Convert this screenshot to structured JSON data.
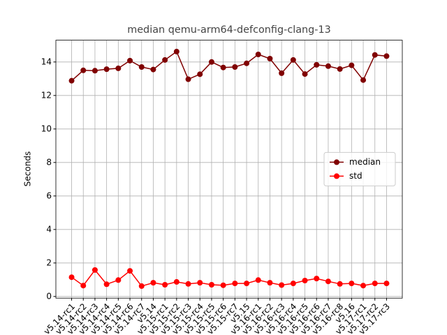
{
  "chart_data": {
    "type": "line",
    "title": "median qemu-arm64-defconfig-clang-13",
    "y_label": "Seconds",
    "categories": [
      "v5.14-rc1",
      "v5.14-rc2",
      "v5.14-rc3",
      "v5.14-rc4",
      "v5.14-rc5",
      "v5.14-rc6",
      "v5.14-rc7",
      "v5.14",
      "v5.15-rc1",
      "v5.15-rc2",
      "v5.15-rc3",
      "v5.15-rc4",
      "v5.15-rc5",
      "v5.15-rc6",
      "v5.15-rc7",
      "v5.15",
      "v5.16-rc1",
      "v5.16-rc2",
      "v5.16-rc3",
      "v5.16-rc4",
      "v5.16-rc5",
      "v5.16-rc6",
      "v5.16-rc7",
      "v5.16-rc8",
      "v5.16",
      "v5.17-rc1",
      "v5.17-rc2",
      "v5.17-rc3"
    ],
    "series": [
      {
        "name": "median",
        "color": "#800000",
        "values": [
          12.88,
          13.5,
          13.48,
          13.57,
          13.62,
          14.08,
          13.7,
          13.55,
          14.12,
          14.62,
          12.97,
          13.27,
          14.0,
          13.67,
          13.7,
          13.92,
          14.45,
          14.2,
          13.33,
          14.12,
          13.28,
          13.83,
          13.75,
          13.58,
          13.8,
          12.92,
          14.42,
          14.35
        ]
      },
      {
        "name": "std",
        "color": "#ff0000",
        "values": [
          1.15,
          0.65,
          1.58,
          0.73,
          0.98,
          1.53,
          0.62,
          0.82,
          0.7,
          0.87,
          0.75,
          0.82,
          0.7,
          0.67,
          0.78,
          0.78,
          0.98,
          0.82,
          0.68,
          0.78,
          0.95,
          1.07,
          0.9,
          0.75,
          0.78,
          0.65,
          0.78,
          0.78
        ]
      }
    ],
    "ylim": [
      -0.1,
      15.3
    ],
    "yticks": [
      0,
      2,
      4,
      6,
      8,
      10,
      12,
      14
    ],
    "grid": true,
    "legend": "center right"
  }
}
